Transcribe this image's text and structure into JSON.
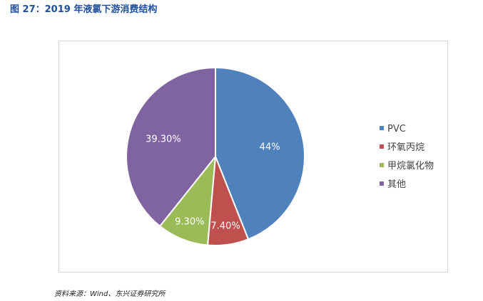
{
  "title": "图 27：2019 年液氯下游消费结构",
  "source": "资料来源：Wind、东兴证券研究所",
  "chart_data": {
    "type": "pie",
    "title": "",
    "slices": [
      {
        "label": "PVC",
        "value": 44,
        "display": "44%",
        "color": "#4f81bd"
      },
      {
        "label": "环氧丙烷",
        "value": 7.4,
        "display": "7.40%",
        "color": "#c0504d"
      },
      {
        "label": "甲烷氯化物",
        "value": 9.3,
        "display": "9.30%",
        "color": "#9bbb59"
      },
      {
        "label": "其他",
        "value": 39.3,
        "display": "39.30%",
        "color": "#8064a2"
      }
    ],
    "legend_position": "right"
  }
}
